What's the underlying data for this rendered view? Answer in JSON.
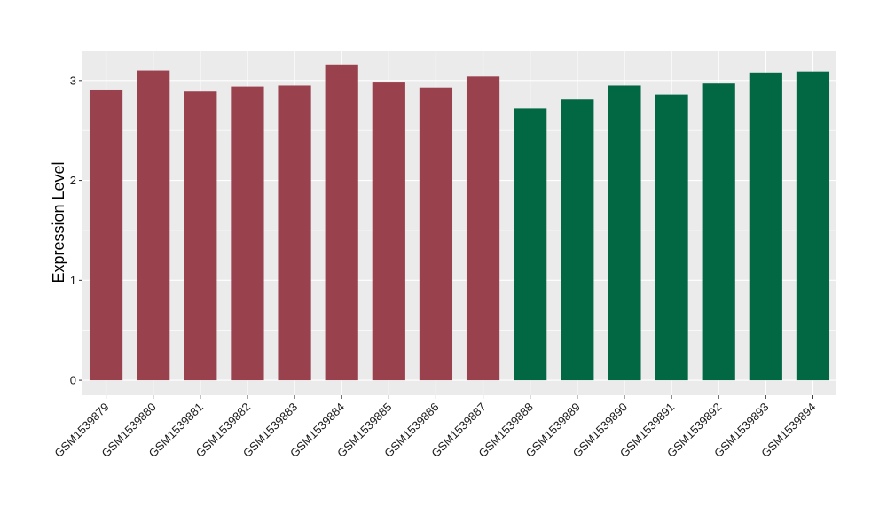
{
  "chart_data": {
    "type": "bar",
    "title": "",
    "xlabel": "",
    "ylabel": "Expression Level",
    "ylim": [
      -0.15,
      3.3
    ],
    "yticks": [
      0,
      1,
      2,
      3
    ],
    "ytick_labels": [
      "0",
      "1",
      "2",
      "3"
    ],
    "grid": true,
    "legend": "none",
    "categories": [
      "GSM1539879",
      "GSM1539880",
      "GSM1539881",
      "GSM1539882",
      "GSM1539883",
      "GSM1539884",
      "GSM1539885",
      "GSM1539886",
      "GSM1539887",
      "GSM1539888",
      "GSM1539889",
      "GSM1539890",
      "GSM1539891",
      "GSM1539892",
      "GSM1539893",
      "GSM1539894"
    ],
    "values": [
      2.91,
      3.1,
      2.89,
      2.94,
      2.95,
      3.16,
      2.98,
      2.93,
      3.04,
      2.72,
      2.81,
      2.95,
      2.86,
      2.97,
      3.08,
      3.09
    ],
    "groups": [
      0,
      0,
      0,
      0,
      0,
      0,
      0,
      0,
      0,
      1,
      1,
      1,
      1,
      1,
      1,
      1
    ],
    "group_colors": [
      "#9a414e",
      "#026844"
    ],
    "panel_background": "#ebebeb",
    "grid_color": "#ffffff"
  }
}
